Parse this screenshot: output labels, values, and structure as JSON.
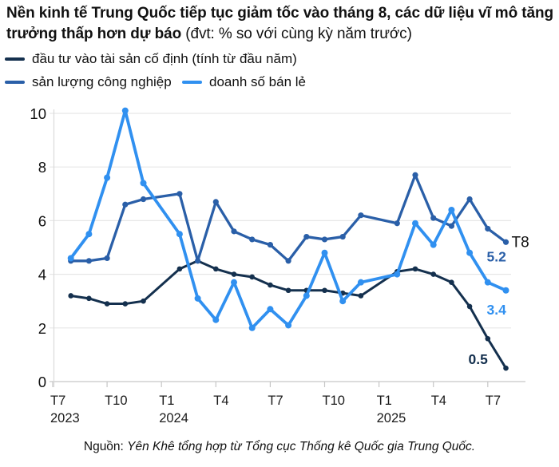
{
  "header": {
    "title": "Nền kinh tế Trung Quốc tiếp tục giảm tốc vào tháng 8, các dữ liệu vĩ mô tăng trưởng thấp hơn dự báo",
    "unit_note": "(đvt: % so với cùng kỳ năm trước)"
  },
  "chart_data": {
    "type": "line",
    "legend_position": "top",
    "last_point_label": "T8",
    "y_axis": {
      "ticks": [
        0,
        2,
        4,
        6,
        8,
        10
      ],
      "range": [
        0,
        10
      ],
      "grid": true
    },
    "x_axis": {
      "start": "T7/2023",
      "end": "T8/2025",
      "ticks": [
        {
          "m": 0,
          "label": "T7",
          "year": "2023"
        },
        {
          "m": 3,
          "label": "T10",
          "year": ""
        },
        {
          "m": 6,
          "label": "T1",
          "year": "2024"
        },
        {
          "m": 9,
          "label": "T4",
          "year": ""
        },
        {
          "m": 12,
          "label": "T7",
          "year": ""
        },
        {
          "m": 15,
          "label": "T10",
          "year": ""
        },
        {
          "m": 18,
          "label": "T1",
          "year": "2025"
        },
        {
          "m": 21,
          "label": "T4",
          "year": ""
        },
        {
          "m": 24,
          "label": "T7",
          "year": ""
        }
      ]
    },
    "months": [
      "T8/2023",
      "T9/2023",
      "T10/2023",
      "T11/2023",
      "T12/2023",
      "T1-2/2024",
      "T3/2024",
      "T4/2024",
      "T5/2024",
      "T6/2024",
      "T7/2024",
      "T8/2024",
      "T9/2024",
      "T10/2024",
      "T11/2024",
      "T12/2024",
      "T1-2/2025",
      "T3/2025",
      "T4/2025",
      "T5/2025",
      "T6/2025",
      "T7/2025",
      "T8/2025"
    ],
    "month_offsets": [
      1,
      2,
      3,
      4,
      5,
      7,
      8,
      9,
      10,
      11,
      12,
      13,
      14,
      15,
      16,
      17,
      19,
      20,
      21,
      22,
      23,
      24,
      25
    ],
    "series": [
      {
        "id": "fixed-asset-investment",
        "name": "đầu tư vào tài sản cố định (tính từ đầu năm)",
        "color": "#14304e",
        "end_label": "0.5",
        "values": [
          3.2,
          3.1,
          2.9,
          2.9,
          3.0,
          4.2,
          4.5,
          4.2,
          4.0,
          3.9,
          3.6,
          3.4,
          3.4,
          3.4,
          3.3,
          3.2,
          4.1,
          4.2,
          4.0,
          3.7,
          2.8,
          1.6,
          0.5
        ]
      },
      {
        "id": "industrial-production",
        "name": "sản lượng công nghiệp",
        "color": "#2a5fa8",
        "end_label": "5.2",
        "values": [
          4.5,
          4.5,
          4.6,
          6.6,
          6.8,
          7.0,
          4.5,
          6.7,
          5.6,
          5.3,
          5.1,
          4.5,
          5.4,
          5.3,
          5.4,
          6.2,
          5.9,
          7.7,
          6.1,
          5.8,
          6.8,
          5.7,
          5.2
        ]
      },
      {
        "id": "retail-sales",
        "name": "doanh số bán lẻ",
        "color": "#3090f0",
        "end_label": "3.4",
        "values": [
          4.6,
          5.5,
          7.6,
          10.1,
          7.4,
          5.5,
          3.1,
          2.3,
          3.7,
          2.0,
          2.7,
          2.1,
          3.2,
          4.8,
          3.0,
          3.7,
          4.0,
          5.9,
          5.1,
          6.4,
          4.8,
          3.7,
          3.4
        ]
      }
    ]
  },
  "footer": {
    "source_prefix": "Nguồn:",
    "source_text": "Yên Khê tổng hợp từ Tổng cục Thống kê Quốc gia Trung Quốc."
  }
}
